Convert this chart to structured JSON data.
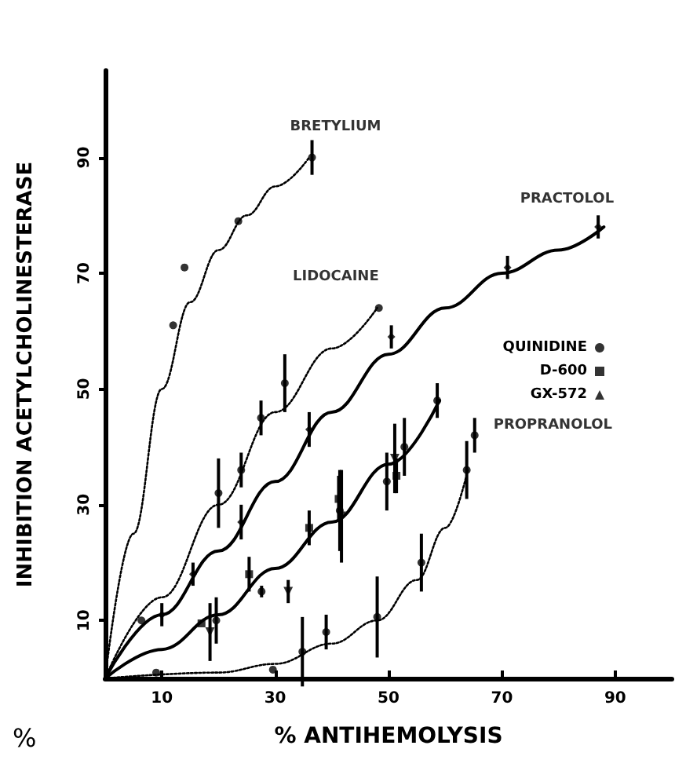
{
  "chart_data": {
    "type": "scatter",
    "xlabel": "% ANTIHEMOLYSIS",
    "ylabel": "INHIBITION ACETYLCHOLINESTERASE",
    "xlim": [
      0,
      100
    ],
    "ylim": [
      0,
      105
    ],
    "xticks": [
      10,
      30,
      50,
      70,
      90
    ],
    "yticks": [
      10,
      30,
      50,
      70,
      90
    ],
    "grid": false,
    "legend": "right",
    "annotations": [
      {
        "text": "BRETYLIUM",
        "x": 36.5,
        "y": 90
      },
      {
        "text": "LIDOCAINE",
        "x": 48.3,
        "y": 64
      },
      {
        "text": "PRACTOLOL",
        "x": 87,
        "y": 78
      },
      {
        "text": "PROPRANOLOL",
        "x": 65.2,
        "y": 42
      },
      "%"
    ],
    "series": [
      {
        "type": "line",
        "color": "#000000",
        "line_style": "dotted",
        "marker": "none",
        "x": [
          0,
          5,
          10,
          15,
          20,
          25,
          30,
          36
        ],
        "values": [
          0,
          25,
          50,
          65,
          74,
          80,
          85,
          90
        ]
      },
      {
        "type": "line",
        "color": "#000000",
        "line_style": "dotted",
        "marker": "none",
        "x": [
          0,
          10,
          20,
          30,
          40,
          48
        ],
        "values": [
          0,
          14,
          30,
          46,
          57,
          64
        ]
      },
      {
        "type": "line",
        "color": "#000000",
        "line_style": "solid",
        "marker": "none",
        "x": [
          0,
          10,
          20,
          30,
          40,
          50,
          60,
          70,
          80,
          88
        ],
        "values": [
          0,
          11,
          22,
          34,
          46,
          56,
          64,
          70,
          74,
          78
        ]
      },
      {
        "type": "line",
        "color": "#000000",
        "line_style": "solid",
        "marker": "none",
        "x": [
          0,
          10,
          20,
          30,
          40,
          50,
          59
        ],
        "values": [
          0,
          5,
          11,
          19,
          27,
          37,
          48
        ]
      },
      {
        "type": "line",
        "color": "#000000",
        "line_style": "dotted",
        "marker": "none",
        "x": [
          0,
          20,
          30,
          40,
          48,
          55,
          60,
          64
        ],
        "values": [
          0,
          1,
          2.5,
          6,
          10,
          17,
          26,
          36
        ]
      },
      {
        "color": "#000000",
        "marker": "circle",
        "x": [
          12,
          14,
          23.5,
          36.5
        ],
        "values": [
          61,
          71,
          79,
          90
        ],
        "errors": [
          null,
          null,
          null,
          3
        ]
      },
      {
        "color": "#000000",
        "marker": "circle",
        "x": [
          6.4,
          20,
          24,
          27.5,
          31.7,
          48.3
        ],
        "values": [
          10,
          32,
          36,
          45,
          51,
          64
        ],
        "errors": [
          null,
          6,
          3,
          3,
          5,
          null
        ]
      },
      {
        "color": "#000000",
        "marker": "diamond",
        "x": [
          10,
          15.5,
          24,
          36,
          50.5,
          71,
          87
        ],
        "values": [
          11,
          18,
          27,
          43,
          59,
          71,
          78
        ],
        "errors": [
          2,
          2,
          3,
          3,
          2,
          2,
          2
        ]
      },
      {
        "name": "QUINIDINE",
        "color": "#000000",
        "marker": "circle",
        "x": [
          19.6,
          27.6,
          41.4,
          49.7,
          52.8,
          58.6
        ],
        "values": [
          10,
          15,
          29,
          34,
          40,
          48
        ],
        "errors": [
          4,
          1,
          7,
          5,
          5,
          3
        ]
      },
      {
        "name": "D-600",
        "color": "#000000",
        "marker": "square",
        "x": [
          17,
          25.4,
          36,
          41.2,
          51.4
        ],
        "values": [
          9.5,
          18,
          26,
          31,
          35
        ],
        "errors": [
          null,
          3,
          3,
          4,
          3
        ]
      },
      {
        "name": "GX-572",
        "color": "#000000",
        "marker": "triangle",
        "x": [
          18.5,
          32.3,
          41.7,
          51.1
        ],
        "values": [
          8,
          15,
          28,
          38
        ],
        "errors": [
          5,
          2,
          8,
          6
        ]
      },
      {
        "color": "#000000",
        "marker": "circle",
        "x": [
          9,
          29.6,
          34.8,
          39,
          48,
          55.8,
          63.8,
          65.2
        ],
        "values": [
          1,
          1.5,
          4.6,
          8,
          10.6,
          20,
          36,
          42
        ],
        "errors": [
          null,
          null,
          6,
          3,
          7,
          5,
          5,
          3
        ]
      }
    ]
  }
}
